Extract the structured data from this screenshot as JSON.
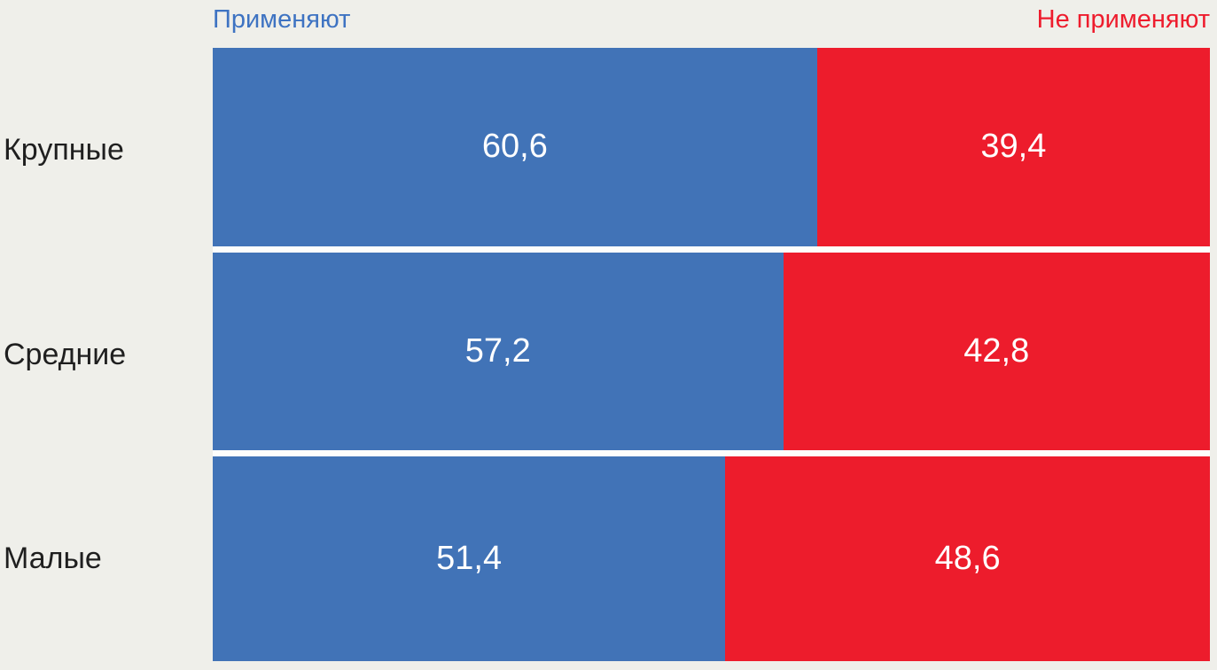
{
  "background_color": "#EFEFEA",
  "legend": {
    "left": "Применяют",
    "right": "Не применяют"
  },
  "colors": {
    "apply": "#4173B7",
    "not_apply": "#ED1C2C",
    "legend_apply": "#3E73C2",
    "legend_not_apply": "#EE1C2D",
    "category_text": "#1F1F1F",
    "value_text": "#FFFFFF",
    "bar_gap": "#FDFDFB"
  },
  "chart_data": {
    "type": "bar",
    "orientation": "horizontal",
    "stacked": true,
    "grid": false,
    "legend_position": "top",
    "xlim": [
      0,
      100
    ],
    "categories": [
      "Крупные",
      "Средние",
      "Малые"
    ],
    "series": [
      {
        "name": "Применяют",
        "color": "#4173B7",
        "values": [
          60.6,
          57.2,
          51.4
        ],
        "labels": [
          "60,6",
          "57,2",
          "51,4"
        ]
      },
      {
        "name": "Не применяют",
        "color": "#ED1C2C",
        "values": [
          39.4,
          42.8,
          48.6
        ],
        "labels": [
          "39,4",
          "42,8",
          "48,6"
        ]
      }
    ]
  }
}
